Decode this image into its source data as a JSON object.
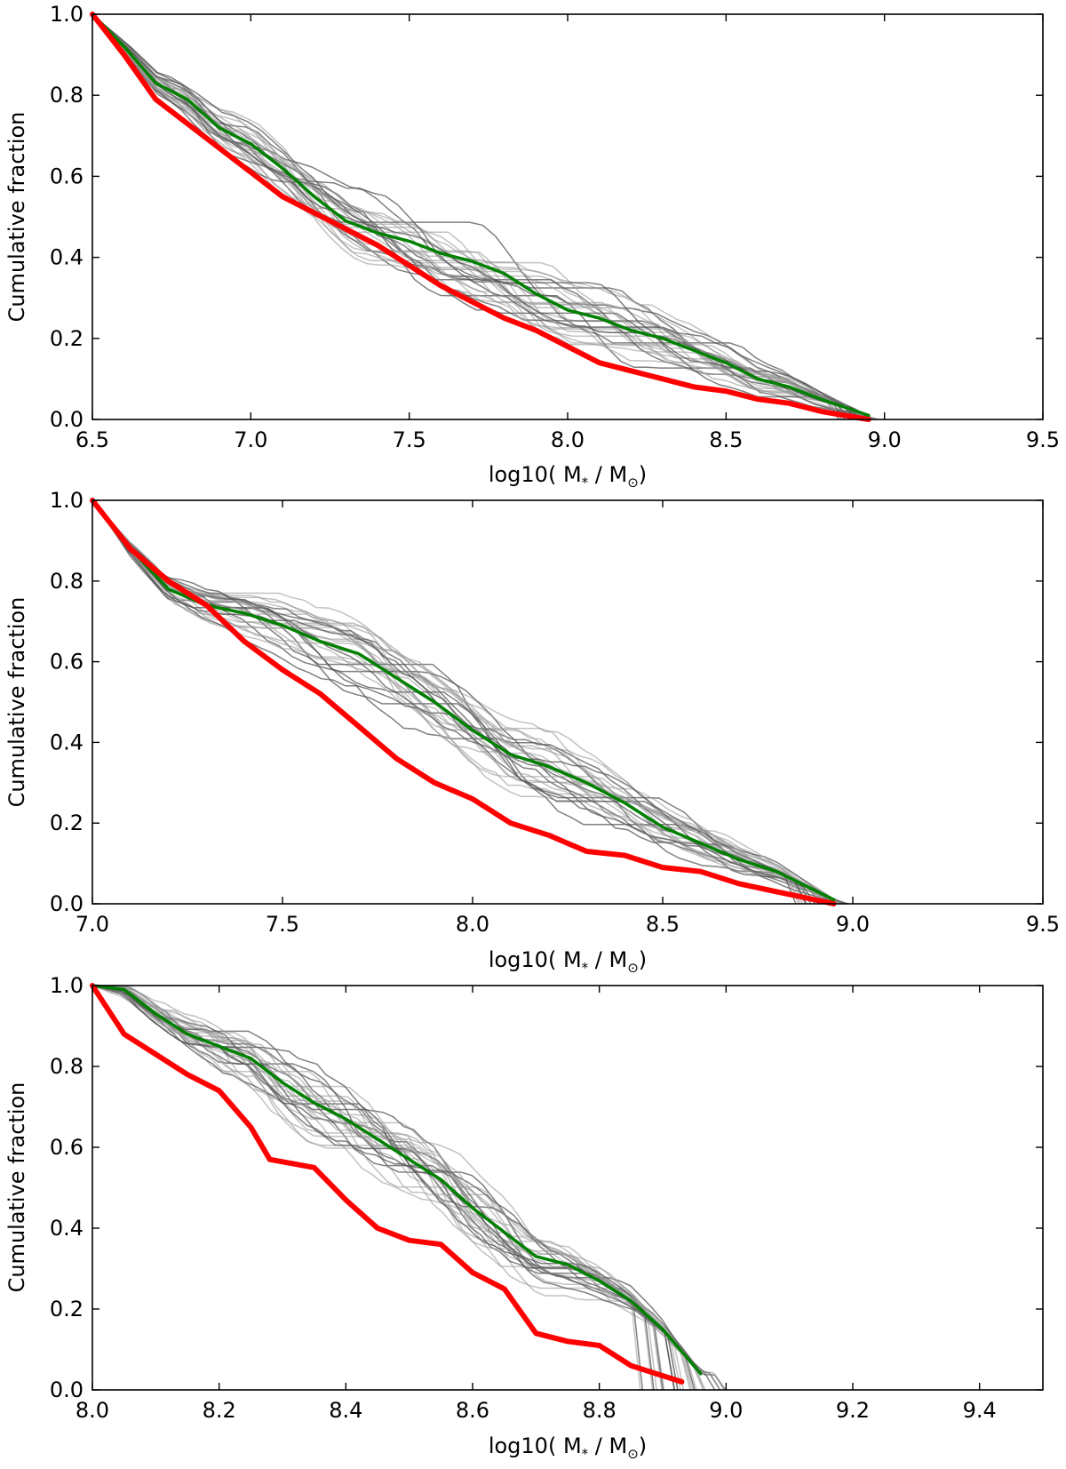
{
  "chart_data": [
    {
      "type": "line",
      "xlim": [
        6.5,
        9.5
      ],
      "ylim": [
        0.0,
        1.0
      ],
      "xticks": [
        "6.5",
        "7.0",
        "7.5",
        "8.0",
        "8.5",
        "9.0",
        "9.5"
      ],
      "yticks": [
        "0.0",
        "0.2",
        "0.4",
        "0.6",
        "0.8",
        "1.0"
      ],
      "xlabel": {
        "prefix": "log10( M",
        "sub1": "*",
        "mid": " / M",
        "sub2": "⊙",
        "suffix": ")"
      },
      "ylabel": "Cumulative fraction",
      "series": [
        {
          "name": "red",
          "color": "#ff0000",
          "x": [
            6.5,
            6.6,
            6.7,
            6.8,
            6.9,
            7.0,
            7.1,
            7.2,
            7.3,
            7.4,
            7.5,
            7.6,
            7.7,
            7.8,
            7.9,
            8.0,
            8.1,
            8.2,
            8.3,
            8.4,
            8.5,
            8.6,
            8.7,
            8.8,
            8.95
          ],
          "y": [
            1.0,
            0.9,
            0.79,
            0.73,
            0.67,
            0.61,
            0.55,
            0.51,
            0.47,
            0.43,
            0.38,
            0.33,
            0.29,
            0.25,
            0.22,
            0.18,
            0.14,
            0.12,
            0.1,
            0.08,
            0.07,
            0.05,
            0.04,
            0.02,
            0.0
          ]
        },
        {
          "name": "green",
          "color": "#008000",
          "x": [
            6.5,
            6.6,
            6.7,
            6.8,
            6.9,
            7.0,
            7.1,
            7.2,
            7.3,
            7.4,
            7.5,
            7.6,
            7.7,
            7.8,
            7.9,
            8.0,
            8.1,
            8.2,
            8.3,
            8.4,
            8.5,
            8.6,
            8.7,
            8.8,
            8.95
          ],
          "y": [
            1.0,
            0.92,
            0.83,
            0.79,
            0.72,
            0.68,
            0.62,
            0.55,
            0.49,
            0.46,
            0.44,
            0.41,
            0.39,
            0.36,
            0.31,
            0.27,
            0.25,
            0.22,
            0.2,
            0.17,
            0.14,
            0.1,
            0.08,
            0.05,
            0.01
          ]
        }
      ]
    },
    {
      "type": "line",
      "xlim": [
        7.0,
        9.5
      ],
      "ylim": [
        0.0,
        1.0
      ],
      "xticks": [
        "7.0",
        "7.5",
        "8.0",
        "8.5",
        "9.0",
        "9.5"
      ],
      "yticks": [
        "0.0",
        "0.2",
        "0.4",
        "0.6",
        "0.8",
        "1.0"
      ],
      "xlabel": {
        "prefix": "log10( M",
        "sub1": "*",
        "mid": " / M",
        "sub2": "⊙",
        "suffix": ")"
      },
      "ylabel": "Cumulative fraction",
      "series": [
        {
          "name": "red",
          "color": "#ff0000",
          "x": [
            7.0,
            7.1,
            7.2,
            7.3,
            7.4,
            7.5,
            7.6,
            7.7,
            7.8,
            7.9,
            8.0,
            8.1,
            8.2,
            8.3,
            8.4,
            8.5,
            8.6,
            8.7,
            8.8,
            8.95
          ],
          "y": [
            1.0,
            0.88,
            0.8,
            0.74,
            0.65,
            0.58,
            0.52,
            0.44,
            0.36,
            0.3,
            0.26,
            0.2,
            0.17,
            0.13,
            0.12,
            0.09,
            0.08,
            0.05,
            0.03,
            0.0
          ]
        },
        {
          "name": "green",
          "color": "#008000",
          "x": [
            7.0,
            7.1,
            7.2,
            7.3,
            7.4,
            7.5,
            7.6,
            7.7,
            7.8,
            7.9,
            8.0,
            8.1,
            8.2,
            8.3,
            8.4,
            8.5,
            8.6,
            8.7,
            8.8,
            8.95
          ],
          "y": [
            1.0,
            0.88,
            0.78,
            0.74,
            0.72,
            0.69,
            0.65,
            0.62,
            0.56,
            0.5,
            0.43,
            0.37,
            0.34,
            0.3,
            0.25,
            0.19,
            0.15,
            0.11,
            0.08,
            0.01
          ]
        }
      ]
    },
    {
      "type": "line",
      "xlim": [
        8.0,
        9.5
      ],
      "ylim": [
        0.0,
        1.0
      ],
      "xticks": [
        "8.0",
        "8.2",
        "8.4",
        "8.6",
        "8.8",
        "9.0",
        "9.2",
        "9.4"
      ],
      "yticks": [
        "0.0",
        "0.2",
        "0.4",
        "0.6",
        "0.8",
        "1.0"
      ],
      "xlabel": {
        "prefix": "log10( M",
        "sub1": "*",
        "mid": " / M",
        "sub2": "⊙",
        "suffix": ")"
      },
      "ylabel": "Cumulative fraction",
      "series": [
        {
          "name": "red",
          "color": "#ff0000",
          "x": [
            8.0,
            8.05,
            8.1,
            8.15,
            8.2,
            8.25,
            8.28,
            8.35,
            8.4,
            8.45,
            8.5,
            8.55,
            8.6,
            8.65,
            8.7,
            8.75,
            8.8,
            8.85,
            8.93
          ],
          "y": [
            1.0,
            0.88,
            0.83,
            0.78,
            0.74,
            0.65,
            0.57,
            0.55,
            0.47,
            0.4,
            0.37,
            0.36,
            0.29,
            0.25,
            0.14,
            0.12,
            0.11,
            0.06,
            0.02
          ]
        },
        {
          "name": "green",
          "color": "#008000",
          "x": [
            8.0,
            8.05,
            8.1,
            8.15,
            8.2,
            8.25,
            8.3,
            8.35,
            8.4,
            8.45,
            8.5,
            8.55,
            8.6,
            8.65,
            8.7,
            8.75,
            8.8,
            8.85,
            8.9,
            8.96
          ],
          "y": [
            1.0,
            0.99,
            0.93,
            0.88,
            0.85,
            0.82,
            0.76,
            0.71,
            0.67,
            0.62,
            0.57,
            0.52,
            0.45,
            0.39,
            0.33,
            0.31,
            0.27,
            0.22,
            0.15,
            0.04
          ]
        }
      ]
    }
  ]
}
